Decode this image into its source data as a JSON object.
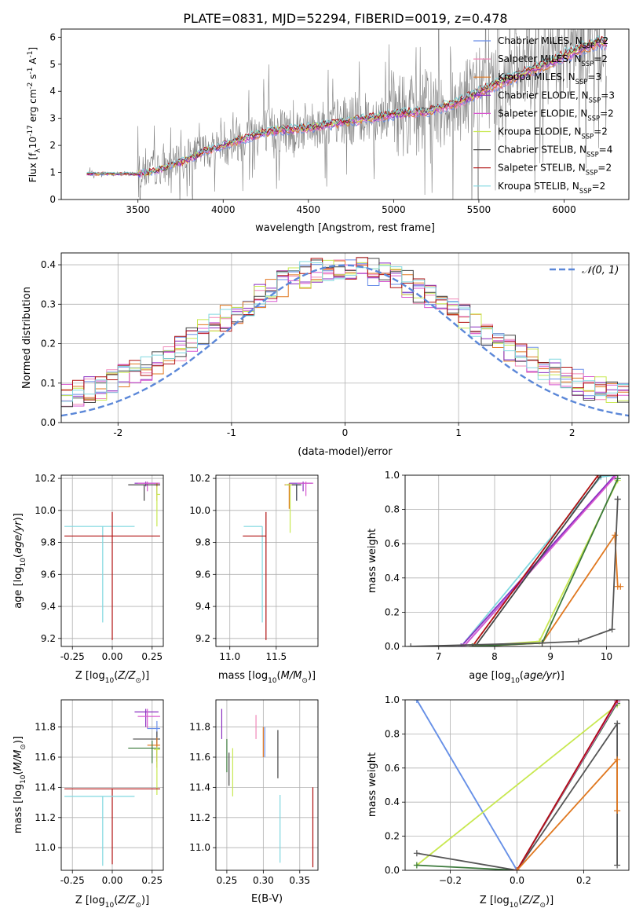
{
  "figure_title": "PLATE=0831, MJD=52294, FIBERID=0019, z=0.478",
  "colors": {
    "chabrier_miles": "#6a8ee8",
    "salpeter_miles": "#f088b8",
    "kroupa_miles": "#e07820",
    "chabrier_elodie": "#8a2fc0",
    "salpeter_elodie": "#d858d0",
    "kroupa_elodie": "#c8e850",
    "chabrier_stelib": "#444444",
    "salpeter_stelib": "#b01010",
    "kroupa_stelib": "#80d8e0",
    "data_grey": "#808080",
    "gaussian": "#5b87d8",
    "dark_green": "#3c7a3c"
  },
  "chart_data": [
    {
      "id": "spectrum",
      "type": "line",
      "title": "PLATE=0831, MJD=52294, FIBERID=0019, z=0.478",
      "xlabel": "wavelength [Angstrom, rest frame]",
      "ylabel": "Flux [f_λ 10^-17 erg cm^-2 s^-1 A^-1]",
      "xlim": [
        3050,
        6380
      ],
      "ylim": [
        0,
        6.3
      ],
      "xticks": [
        3500,
        4000,
        4500,
        5000,
        5500,
        6000
      ],
      "yticks": [
        0,
        1,
        2,
        3,
        4,
        5,
        6
      ],
      "grid": false,
      "legend_position": "top-right",
      "legend": [
        {
          "label": "Chabrier MILES, N",
          "sub": "SSP",
          "tail": "=2",
          "color": "#6a8ee8"
        },
        {
          "label": "Salpeter MILES, N",
          "sub": "SSP",
          "tail": "=2",
          "color": "#f088b8"
        },
        {
          "label": "Kroupa MILES, N",
          "sub": "SSP",
          "tail": "=3",
          "color": "#e07820"
        },
        {
          "label": "Chabrier ELODIE, N",
          "sub": "SSP",
          "tail": "=3",
          "color": "#8a2fc0"
        },
        {
          "label": "Salpeter ELODIE, N",
          "sub": "SSP",
          "tail": "=2",
          "color": "#d858d0"
        },
        {
          "label": "Kroupa ELODIE, N",
          "sub": "SSP",
          "tail": "=2",
          "color": "#c8e850"
        },
        {
          "label": "Chabrier STELIB, N",
          "sub": "SSP",
          "tail": "=4",
          "color": "#444444"
        },
        {
          "label": "Salpeter STELIB, N",
          "sub": "SSP",
          "tail": "=2",
          "color": "#b01010"
        },
        {
          "label": "Kroupa STELIB, N",
          "sub": "SSP",
          "tail": "=2",
          "color": "#80d8e0"
        }
      ],
      "data_x": [
        3200,
        3300,
        3400,
        3500,
        3600,
        3700,
        3800,
        3900,
        4000,
        4100,
        4200,
        4300,
        4400,
        4500,
        4600,
        4700,
        4800,
        4900,
        5000,
        5100,
        5200,
        5300,
        5400,
        5500,
        5600,
        5700,
        5800,
        5900,
        6000,
        6100,
        6200
      ],
      "data_y": [
        0.95,
        0.95,
        0.95,
        0.95,
        1.1,
        1.3,
        1.6,
        1.9,
        2.1,
        2.3,
        2.5,
        2.6,
        2.6,
        2.7,
        2.8,
        2.9,
        3.0,
        3.1,
        3.2,
        3.2,
        3.3,
        3.5,
        3.7,
        4.0,
        4.3,
        4.5,
        4.8,
        5.0,
        5.3,
        5.6,
        5.8
      ],
      "model_x": [
        3200,
        3300,
        3400,
        3500,
        3600,
        3700,
        3800,
        3900,
        4000,
        4100,
        4200,
        4300,
        4400,
        4500,
        4600,
        4700,
        4800,
        4900,
        5000,
        5100,
        5200,
        5300,
        5400,
        5500,
        5600,
        5700,
        5800,
        5900,
        6000,
        6100,
        6200
      ],
      "model_y": [
        0.95,
        0.95,
        0.95,
        0.95,
        1.05,
        1.25,
        1.5,
        1.8,
        2.0,
        2.2,
        2.4,
        2.55,
        2.6,
        2.65,
        2.75,
        2.85,
        2.95,
        3.05,
        3.15,
        3.2,
        3.25,
        3.45,
        3.65,
        3.95,
        4.25,
        4.5,
        4.75,
        5.0,
        5.3,
        5.55,
        5.8
      ]
    },
    {
      "id": "residuals",
      "type": "bar",
      "xlabel": "(data-model)/error",
      "ylabel": "Normed distribution",
      "xlim": [
        -2.5,
        2.5
      ],
      "ylim": [
        0,
        0.43
      ],
      "xticks": [
        -2,
        -1,
        0,
        1,
        2
      ],
      "yticks": [
        0.0,
        0.1,
        0.2,
        0.3,
        0.4
      ],
      "grid": true,
      "legend_position": "top-right",
      "legend": [
        {
          "label": "𝒩(0, 1)",
          "color": "#5b87d8",
          "style": "dashed"
        }
      ],
      "bin_width": 0.1
    },
    {
      "id": "age_vs_Z",
      "type": "scatter",
      "xlabel": "Z [log10(Z/Z⊙)]",
      "ylabel": "age [log10(age/yr)]",
      "xlim": [
        -0.32,
        0.32
      ],
      "ylim": [
        9.15,
        10.22
      ],
      "xticks": [
        -0.25,
        0.0,
        0.25
      ],
      "yticks": [
        9.2,
        9.4,
        9.6,
        9.8,
        10.0,
        10.2
      ],
      "grid": true,
      "points": [
        {
          "x": 0.21,
          "y": 10.17,
          "xerr": [
            0.07,
            0.08
          ],
          "yerr": [
            0.02,
            0.01
          ],
          "color": "#8a2fc0"
        },
        {
          "x": 0.22,
          "y": 10.17,
          "xerr": [
            0.06,
            0.08
          ],
          "yerr": [
            0.05,
            0.01
          ],
          "color": "#d858d0"
        },
        {
          "x": 0.28,
          "y": 10.16,
          "xerr": [
            0.02,
            0.02
          ],
          "yerr": [
            0.06,
            0.01
          ],
          "color": "#6a8ee8"
        },
        {
          "x": 0.28,
          "y": 10.16,
          "xerr": [
            0.02,
            0.02
          ],
          "yerr": [
            0.1,
            0.01
          ],
          "color": "#e07820"
        },
        {
          "x": 0.2,
          "y": 10.16,
          "xerr": [
            0.1,
            0.1
          ],
          "yerr": [
            0.1,
            0.0
          ],
          "color": "#444444"
        },
        {
          "x": 0.28,
          "y": 10.1,
          "xerr": [
            0.0,
            0.02
          ],
          "yerr": [
            0.2,
            0.05
          ],
          "color": "#c8e850"
        },
        {
          "x": -0.06,
          "y": 9.9,
          "xerr": [
            0.24,
            0.2
          ],
          "yerr": [
            0.6,
            0.0
          ],
          "color": "#80d8e0"
        },
        {
          "x": 0.0,
          "y": 9.84,
          "xerr": [
            0.3,
            0.3
          ],
          "yerr": [
            0.65,
            0.15
          ],
          "color": "#b01010"
        }
      ]
    },
    {
      "id": "age_vs_mass",
      "type": "scatter",
      "xlabel": "mass [log10(M/M⊙)]",
      "ylabel": "",
      "xlim": [
        10.85,
        11.95
      ],
      "ylim": [
        9.15,
        10.22
      ],
      "xticks": [
        11.0,
        11.5
      ],
      "yticks": [
        9.2,
        9.4,
        9.6,
        9.8,
        10.0,
        10.2
      ],
      "grid": true,
      "points": [
        {
          "x": 11.79,
          "y": 10.17,
          "xerr": [
            0.15,
            0.1
          ],
          "yerr": [
            0.05,
            0.01
          ],
          "color": "#8a2fc0"
        },
        {
          "x": 11.82,
          "y": 10.17,
          "xerr": [
            0.1,
            0.08
          ],
          "yerr": [
            0.08,
            0.01
          ],
          "color": "#d858d0"
        },
        {
          "x": 11.72,
          "y": 10.16,
          "xerr": [
            0.1,
            0.05
          ],
          "yerr": [
            0.1,
            0.01
          ],
          "color": "#6a8ee8"
        },
        {
          "x": 11.64,
          "y": 10.16,
          "xerr": [
            0.05,
            0.05
          ],
          "yerr": [
            0.15,
            0.01
          ],
          "color": "#e07820"
        },
        {
          "x": 11.72,
          "y": 10.16,
          "xerr": [
            0.1,
            0.05
          ],
          "yerr": [
            0.1,
            0.0
          ],
          "color": "#444444"
        },
        {
          "x": 11.65,
          "y": 10.16,
          "xerr": [
            0.05,
            0.02
          ],
          "yerr": [
            0.3,
            0.0
          ],
          "color": "#c8e850"
        },
        {
          "x": 11.35,
          "y": 9.9,
          "xerr": [
            0.2,
            0.0
          ],
          "yerr": [
            0.6,
            0.0
          ],
          "color": "#80d8e0"
        },
        {
          "x": 11.39,
          "y": 9.84,
          "xerr": [
            0.25,
            0.0
          ],
          "yerr": [
            0.65,
            0.15
          ],
          "color": "#b01010"
        }
      ]
    },
    {
      "id": "weight_vs_age",
      "type": "line",
      "xlabel": "age [log10(age/yr)]",
      "ylabel": "mass weight",
      "xlim": [
        6.4,
        10.4
      ],
      "ylim": [
        0,
        1
      ],
      "xticks": [
        7,
        8,
        9,
        10
      ],
      "yticks": [
        0.0,
        0.2,
        0.4,
        0.6,
        0.8,
        1.0
      ],
      "grid": true,
      "series": [
        {
          "color": "#80d8e0",
          "x": [
            7.4,
            9.9,
            10.15
          ],
          "y": [
            0.0,
            0.99,
            1.0
          ]
        },
        {
          "color": "#6a8ee8",
          "x": [
            7.45,
            10.15
          ],
          "y": [
            0.0,
            1.0
          ]
        },
        {
          "color": "#8a2fc0",
          "x": [
            7.4,
            10.15
          ],
          "y": [
            0.0,
            1.0
          ]
        },
        {
          "color": "#d858d0",
          "x": [
            7.45,
            10.15
          ],
          "y": [
            0.0,
            0.99
          ]
        },
        {
          "color": "#b01010",
          "x": [
            7.6,
            9.85
          ],
          "y": [
            0.0,
            1.0
          ]
        },
        {
          "color": "#444444",
          "x": [
            7.65,
            9.9,
            10.2
          ],
          "y": [
            0.0,
            1.0,
            1.0
          ]
        },
        {
          "color": "#e07820",
          "x": [
            7.65,
            8.85,
            10.15,
            10.2,
            10.25
          ],
          "y": [
            0.0,
            0.02,
            0.65,
            0.35,
            0.35
          ]
        },
        {
          "color": "#c8e850",
          "x": [
            7.6,
            8.8,
            10.2
          ],
          "y": [
            0.0,
            0.03,
            0.97
          ]
        },
        {
          "color": "#3c7a3c",
          "x": [
            7.6,
            8.85,
            10.2
          ],
          "y": [
            0.0,
            0.02,
            0.98
          ]
        },
        {
          "color": "#555555",
          "x": [
            6.5,
            8.85,
            9.5,
            10.1,
            10.2,
            10.2
          ],
          "y": [
            0.0,
            0.02,
            0.03,
            0.1,
            0.86,
            0.86
          ]
        }
      ]
    },
    {
      "id": "mass_vs_Z",
      "type": "scatter",
      "xlabel": "Z [log10(Z/Z⊙)]",
      "ylabel": "mass [log10(M/M⊙)]",
      "xlim": [
        -0.32,
        0.32
      ],
      "ylim": [
        10.85,
        11.98
      ],
      "xticks": [
        -0.25,
        0.0,
        0.25
      ],
      "yticks": [
        11.0,
        11.2,
        11.4,
        11.6,
        11.8
      ],
      "grid": true,
      "points": [
        {
          "x": 0.21,
          "y": 11.9,
          "xerr": [
            0.07,
            0.08
          ],
          "yerr": [
            0.1,
            0.02
          ],
          "color": "#8a2fc0"
        },
        {
          "x": 0.22,
          "y": 11.87,
          "xerr": [
            0.06,
            0.08
          ],
          "yerr": [
            0.08,
            0.05
          ],
          "color": "#d858d0"
        },
        {
          "x": 0.28,
          "y": 11.79,
          "xerr": [
            0.06,
            0.02
          ],
          "yerr": [
            0.1,
            0.05
          ],
          "color": "#6a8ee8"
        },
        {
          "x": 0.28,
          "y": 11.72,
          "xerr": [
            0.15,
            0.02
          ],
          "yerr": [
            0.15,
            0.05
          ],
          "color": "#444444"
        },
        {
          "x": 0.28,
          "y": 11.68,
          "xerr": [
            0.06,
            0.02
          ],
          "yerr": [
            0.15,
            0.05
          ],
          "color": "#e07820"
        },
        {
          "x": 0.25,
          "y": 11.66,
          "xerr": [
            0.15,
            0.05
          ],
          "yerr": [
            0.1,
            0.05
          ],
          "color": "#3c7a3c"
        },
        {
          "x": 0.28,
          "y": 11.65,
          "xerr": [
            0.02,
            0.02
          ],
          "yerr": [
            0.3,
            0.02
          ],
          "color": "#c8e850"
        },
        {
          "x": 0.0,
          "y": 11.39,
          "xerr": [
            0.3,
            0.3
          ],
          "yerr": [
            0.5,
            0.0
          ],
          "color": "#b01010"
        },
        {
          "x": -0.06,
          "y": 11.34,
          "xerr": [
            0.24,
            0.2
          ],
          "yerr": [
            0.46,
            0.0
          ],
          "color": "#80d8e0"
        }
      ]
    },
    {
      "id": "mass_vs_EBV",
      "type": "scatter",
      "xlabel": "E(B-V)",
      "ylabel": "",
      "xlim": [
        0.235,
        0.375
      ],
      "ylim": [
        10.85,
        11.98
      ],
      "xticks": [
        0.25,
        0.3,
        0.35
      ],
      "yticks": [
        11.0,
        11.2,
        11.4,
        11.6,
        11.8
      ],
      "grid": true,
      "points": [
        {
          "x": 0.243,
          "y": 11.8,
          "yerr": [
            0.08,
            0.12
          ],
          "color": "#8a2fc0"
        },
        {
          "x": 0.25,
          "y": 11.62,
          "yerr": [
            0.12,
            0.1
          ],
          "color": "#3c7a3c"
        },
        {
          "x": 0.253,
          "y": 11.53,
          "yerr": [
            0.12,
            0.1
          ],
          "color": "#444444"
        },
        {
          "x": 0.258,
          "y": 11.5,
          "yerr": [
            0.16,
            0.16
          ],
          "color": "#c8e850"
        },
        {
          "x": 0.29,
          "y": 11.8,
          "yerr": [
            0.08,
            0.08
          ],
          "color": "#f088b8"
        },
        {
          "x": 0.3,
          "y": 11.7,
          "yerr": [
            0.1,
            0.1
          ],
          "color": "#e07820"
        },
        {
          "x": 0.302,
          "y": 11.7,
          "yerr": [
            0.1,
            0.1
          ],
          "color": "#6a8ee8"
        },
        {
          "x": 0.32,
          "y": 11.62,
          "yerr": [
            0.16,
            0.16
          ],
          "color": "#444444"
        },
        {
          "x": 0.323,
          "y": 11.12,
          "yerr": [
            0.22,
            0.23
          ],
          "color": "#80d8e0"
        },
        {
          "x": 0.368,
          "y": 11.13,
          "yerr": [
            0.26,
            0.27
          ],
          "color": "#b01010"
        }
      ]
    },
    {
      "id": "weight_vs_Z",
      "type": "line",
      "xlabel": "Z [log10(Z/Z⊙)]",
      "ylabel": "mass weight",
      "xlim": [
        -0.335,
        0.335
      ],
      "ylim": [
        0,
        1
      ],
      "xticks": [
        -0.2,
        0.0,
        0.2
      ],
      "yticks": [
        0.0,
        0.2,
        0.4,
        0.6,
        0.8,
        1.0
      ],
      "grid": true,
      "series": [
        {
          "color": "#80d8e0",
          "x": [
            -0.3,
            0.0
          ],
          "y": [
            1.0,
            0.0
          ]
        },
        {
          "color": "#6a8ee8",
          "x": [
            -0.3,
            0.0
          ],
          "y": [
            1.0,
            0.0
          ]
        },
        {
          "color": "#c8e850",
          "x": [
            -0.3,
            0.3
          ],
          "y": [
            0.03,
            0.97
          ]
        },
        {
          "color": "#3c7a3c",
          "x": [
            -0.3,
            0.0,
            0.3
          ],
          "y": [
            0.03,
            0.0,
            0.98
          ]
        },
        {
          "color": "#555555",
          "x": [
            -0.3,
            0.0,
            0.3,
            0.3,
            0.3
          ],
          "y": [
            0.1,
            0.0,
            0.86,
            0.86,
            0.03
          ]
        },
        {
          "color": "#8a2fc0",
          "x": [
            0.0,
            0.3
          ],
          "y": [
            0.0,
            1.0
          ]
        },
        {
          "color": "#d858d0",
          "x": [
            0.0,
            0.3
          ],
          "y": [
            0.0,
            0.99
          ]
        },
        {
          "color": "#b01010",
          "x": [
            0.0,
            0.3
          ],
          "y": [
            0.0,
            1.0
          ]
        },
        {
          "color": "#e07820",
          "x": [
            0.0,
            0.3,
            0.3,
            0.3
          ],
          "y": [
            0.0,
            0.65,
            0.35,
            0.35
          ]
        }
      ]
    }
  ]
}
